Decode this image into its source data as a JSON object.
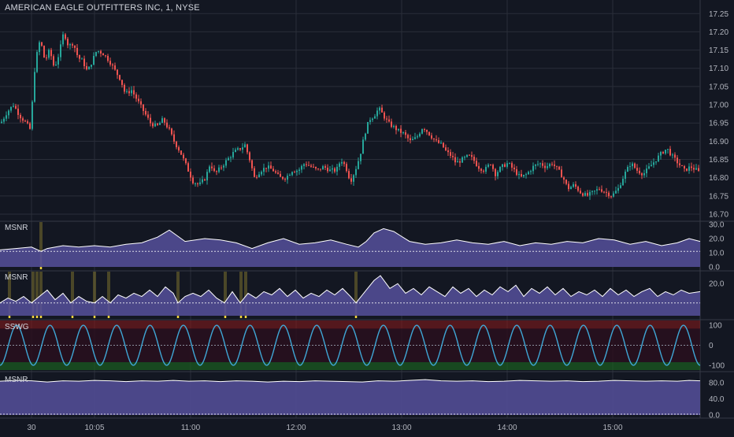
{
  "colors": {
    "background": "#131722",
    "grid": "#2a2e39",
    "up": "#26a69a",
    "down": "#ef5350",
    "osc_fill": "#4e4a8f",
    "osc_line": "#ffffff",
    "highlight": "#f5d63d",
    "wave": "#3fa7d6",
    "sswg_upper": "#8b1a1a",
    "sswg_lower": "#1b5e20"
  },
  "header": {
    "title": "AMERICAN EAGLE OUTFITTERS INC, 1, NYSE"
  },
  "x_axis": {
    "ticks": [
      "30",
      "10:05",
      "11:00",
      "12:00",
      "13:00",
      "14:00",
      "15:00"
    ]
  },
  "chart_data": [
    {
      "type": "candlestick",
      "name": "price",
      "y_ticks": [
        "17.25",
        "17.20",
        "17.15",
        "17.10",
        "17.05",
        "17.00",
        "16.95",
        "16.90",
        "16.85",
        "16.80",
        "16.75",
        "16.70"
      ],
      "ylim": [
        16.7,
        17.27
      ],
      "close_path": [
        [
          0,
          16.95
        ],
        [
          8,
          16.98
        ],
        [
          16,
          17.0
        ],
        [
          24,
          16.97
        ],
        [
          32,
          16.95
        ],
        [
          38,
          16.93
        ],
        [
          42,
          17.08
        ],
        [
          46,
          17.14
        ],
        [
          50,
          17.18
        ],
        [
          56,
          17.12
        ],
        [
          62,
          17.15
        ],
        [
          68,
          17.1
        ],
        [
          74,
          17.14
        ],
        [
          80,
          17.2
        ],
        [
          86,
          17.16
        ],
        [
          92,
          17.17
        ],
        [
          98,
          17.13
        ],
        [
          104,
          17.12
        ],
        [
          110,
          17.09
        ],
        [
          116,
          17.12
        ],
        [
          122,
          17.15
        ],
        [
          130,
          17.14
        ],
        [
          138,
          17.12
        ],
        [
          146,
          17.09
        ],
        [
          152,
          17.07
        ],
        [
          158,
          17.03
        ],
        [
          166,
          17.04
        ],
        [
          174,
          17.01
        ],
        [
          182,
          16.98
        ],
        [
          190,
          16.95
        ],
        [
          198,
          16.94
        ],
        [
          206,
          16.96
        ],
        [
          214,
          16.93
        ],
        [
          220,
          16.9
        ],
        [
          228,
          16.87
        ],
        [
          236,
          16.83
        ],
        [
          244,
          16.79
        ],
        [
          252,
          16.78
        ],
        [
          260,
          16.8
        ],
        [
          266,
          16.84
        ],
        [
          272,
          16.81
        ],
        [
          280,
          16.83
        ],
        [
          288,
          16.85
        ],
        [
          296,
          16.87
        ],
        [
          304,
          16.88
        ],
        [
          310,
          16.89
        ],
        [
          316,
          16.85
        ],
        [
          322,
          16.8
        ],
        [
          330,
          16.82
        ],
        [
          338,
          16.83
        ],
        [
          346,
          16.82
        ],
        [
          354,
          16.8
        ],
        [
          362,
          16.8
        ],
        [
          370,
          16.82
        ],
        [
          378,
          16.82
        ],
        [
          386,
          16.84
        ],
        [
          394,
          16.83
        ],
        [
          402,
          16.82
        ],
        [
          410,
          16.83
        ],
        [
          418,
          16.82
        ],
        [
          426,
          16.82
        ],
        [
          432,
          16.85
        ],
        [
          438,
          16.83
        ],
        [
          444,
          16.79
        ],
        [
          450,
          16.82
        ],
        [
          456,
          16.86
        ],
        [
          462,
          16.92
        ],
        [
          468,
          16.96
        ],
        [
          474,
          16.97
        ],
        [
          480,
          16.99
        ],
        [
          486,
          16.97
        ],
        [
          492,
          16.95
        ],
        [
          498,
          16.94
        ],
        [
          504,
          16.93
        ],
        [
          512,
          16.92
        ],
        [
          520,
          16.9
        ],
        [
          528,
          16.91
        ],
        [
          536,
          16.94
        ],
        [
          544,
          16.92
        ],
        [
          552,
          16.9
        ],
        [
          560,
          16.89
        ],
        [
          566,
          16.87
        ],
        [
          572,
          16.86
        ],
        [
          578,
          16.84
        ],
        [
          586,
          16.85
        ],
        [
          594,
          16.86
        ],
        [
          600,
          16.85
        ],
        [
          606,
          16.83
        ],
        [
          614,
          16.82
        ],
        [
          622,
          16.84
        ],
        [
          628,
          16.81
        ],
        [
          636,
          16.83
        ],
        [
          644,
          16.84
        ],
        [
          652,
          16.82
        ],
        [
          660,
          16.8
        ],
        [
          668,
          16.81
        ],
        [
          676,
          16.83
        ],
        [
          684,
          16.84
        ],
        [
          692,
          16.83
        ],
        [
          700,
          16.84
        ],
        [
          708,
          16.82
        ],
        [
          714,
          16.8
        ],
        [
          720,
          16.77
        ],
        [
          728,
          16.78
        ],
        [
          736,
          16.76
        ],
        [
          744,
          16.75
        ],
        [
          752,
          16.76
        ],
        [
          760,
          16.77
        ],
        [
          768,
          16.76
        ],
        [
          776,
          16.75
        ],
        [
          784,
          16.77
        ],
        [
          792,
          16.81
        ],
        [
          800,
          16.84
        ],
        [
          808,
          16.82
        ],
        [
          816,
          16.81
        ],
        [
          824,
          16.83
        ],
        [
          832,
          16.85
        ],
        [
          840,
          16.87
        ],
        [
          846,
          16.88
        ],
        [
          852,
          16.86
        ],
        [
          860,
          16.84
        ],
        [
          868,
          16.82
        ],
        [
          876,
          16.83
        ],
        [
          884,
          16.82
        ],
        [
          889,
          16.81
        ]
      ]
    },
    {
      "type": "area",
      "name": "MSNR",
      "y_ticks": [
        "30.0",
        "20.0",
        "10.0",
        "0.0"
      ],
      "ylim": [
        0,
        30
      ],
      "baseline": 11,
      "points": [
        [
          0,
          12
        ],
        [
          20,
          13
        ],
        [
          40,
          14
        ],
        [
          52,
          11
        ],
        [
          60,
          13
        ],
        [
          80,
          15
        ],
        [
          100,
          14
        ],
        [
          120,
          15
        ],
        [
          140,
          14
        ],
        [
          160,
          16
        ],
        [
          180,
          17
        ],
        [
          200,
          21
        ],
        [
          215,
          26
        ],
        [
          235,
          18
        ],
        [
          260,
          20
        ],
        [
          280,
          19
        ],
        [
          300,
          17
        ],
        [
          320,
          13
        ],
        [
          340,
          17
        ],
        [
          360,
          20
        ],
        [
          380,
          16
        ],
        [
          400,
          17
        ],
        [
          420,
          19
        ],
        [
          440,
          16
        ],
        [
          455,
          14
        ],
        [
          465,
          18
        ],
        [
          475,
          24
        ],
        [
          487,
          27
        ],
        [
          500,
          25
        ],
        [
          520,
          18
        ],
        [
          540,
          16
        ],
        [
          560,
          17
        ],
        [
          580,
          19
        ],
        [
          600,
          17
        ],
        [
          620,
          16
        ],
        [
          640,
          18
        ],
        [
          660,
          15
        ],
        [
          680,
          17
        ],
        [
          700,
          16
        ],
        [
          720,
          18
        ],
        [
          740,
          17
        ],
        [
          760,
          20
        ],
        [
          780,
          19
        ],
        [
          800,
          16
        ],
        [
          820,
          18
        ],
        [
          840,
          15
        ],
        [
          860,
          17
        ],
        [
          875,
          20
        ],
        [
          889,
          18
        ]
      ],
      "highlight_x": [
        52
      ]
    },
    {
      "type": "area",
      "name": "MSNR",
      "y_ticks": [
        "20.0"
      ],
      "ylim": [
        0,
        26
      ],
      "baseline": 8,
      "points": [
        [
          0,
          8
        ],
        [
          10,
          11
        ],
        [
          20,
          9
        ],
        [
          30,
          12
        ],
        [
          40,
          8
        ],
        [
          50,
          12
        ],
        [
          60,
          16
        ],
        [
          70,
          10
        ],
        [
          80,
          14
        ],
        [
          90,
          8
        ],
        [
          100,
          12
        ],
        [
          110,
          9
        ],
        [
          120,
          8
        ],
        [
          130,
          12
        ],
        [
          140,
          8
        ],
        [
          150,
          13
        ],
        [
          160,
          11
        ],
        [
          170,
          14
        ],
        [
          180,
          12
        ],
        [
          190,
          16
        ],
        [
          200,
          12
        ],
        [
          210,
          18
        ],
        [
          220,
          14
        ],
        [
          226,
          8
        ],
        [
          235,
          12
        ],
        [
          245,
          14
        ],
        [
          255,
          12
        ],
        [
          265,
          16
        ],
        [
          275,
          11
        ],
        [
          285,
          8
        ],
        [
          295,
          15
        ],
        [
          305,
          8
        ],
        [
          315,
          14
        ],
        [
          325,
          11
        ],
        [
          335,
          15
        ],
        [
          345,
          13
        ],
        [
          355,
          17
        ],
        [
          365,
          12
        ],
        [
          375,
          16
        ],
        [
          385,
          11
        ],
        [
          395,
          14
        ],
        [
          405,
          12
        ],
        [
          415,
          16
        ],
        [
          425,
          13
        ],
        [
          435,
          17
        ],
        [
          445,
          12
        ],
        [
          452,
          8
        ],
        [
          465,
          16
        ],
        [
          475,
          22
        ],
        [
          483,
          25
        ],
        [
          495,
          17
        ],
        [
          505,
          20
        ],
        [
          515,
          14
        ],
        [
          525,
          17
        ],
        [
          535,
          13
        ],
        [
          545,
          18
        ],
        [
          555,
          15
        ],
        [
          565,
          12
        ],
        [
          575,
          18
        ],
        [
          585,
          14
        ],
        [
          595,
          17
        ],
        [
          605,
          12
        ],
        [
          615,
          16
        ],
        [
          625,
          13
        ],
        [
          635,
          18
        ],
        [
          645,
          15
        ],
        [
          655,
          19
        ],
        [
          665,
          12
        ],
        [
          675,
          17
        ],
        [
          685,
          14
        ],
        [
          695,
          18
        ],
        [
          705,
          13
        ],
        [
          715,
          17
        ],
        [
          725,
          12
        ],
        [
          735,
          15
        ],
        [
          745,
          13
        ],
        [
          755,
          16
        ],
        [
          765,
          12
        ],
        [
          775,
          17
        ],
        [
          785,
          13
        ],
        [
          795,
          16
        ],
        [
          805,
          12
        ],
        [
          815,
          15
        ],
        [
          825,
          17
        ],
        [
          835,
          12
        ],
        [
          845,
          15
        ],
        [
          855,
          13
        ],
        [
          865,
          16
        ],
        [
          875,
          14
        ],
        [
          889,
          15
        ]
      ],
      "highlight_x": [
        12,
        42,
        47,
        52,
        92,
        120,
        138,
        226,
        286,
        306,
        312,
        452
      ]
    },
    {
      "type": "line",
      "name": "SSWG",
      "y_ticks": [
        "100",
        "0",
        "-100"
      ],
      "ylim": [
        -120,
        120
      ],
      "cycles": 21,
      "amplitude": 100
    },
    {
      "type": "area",
      "name": "MSNR",
      "y_ticks": [
        "80.0",
        "40.0",
        "0.0"
      ],
      "ylim": [
        0,
        100
      ],
      "baseline": 2,
      "points": [
        [
          0,
          84
        ],
        [
          20,
          86
        ],
        [
          40,
          85
        ],
        [
          60,
          82
        ],
        [
          80,
          85
        ],
        [
          100,
          84
        ],
        [
          120,
          86
        ],
        [
          140,
          85
        ],
        [
          160,
          83
        ],
        [
          180,
          85
        ],
        [
          200,
          84
        ],
        [
          220,
          86
        ],
        [
          240,
          84
        ],
        [
          260,
          85
        ],
        [
          280,
          83
        ],
        [
          300,
          85
        ],
        [
          320,
          84
        ],
        [
          340,
          82
        ],
        [
          360,
          84
        ],
        [
          380,
          83
        ],
        [
          400,
          85
        ],
        [
          420,
          84
        ],
        [
          440,
          83
        ],
        [
          460,
          82
        ],
        [
          480,
          85
        ],
        [
          500,
          84
        ],
        [
          520,
          86
        ],
        [
          540,
          88
        ],
        [
          560,
          85
        ],
        [
          580,
          84
        ],
        [
          600,
          85
        ],
        [
          620,
          83
        ],
        [
          640,
          84
        ],
        [
          660,
          86
        ],
        [
          680,
          85
        ],
        [
          700,
          84
        ],
        [
          720,
          85
        ],
        [
          740,
          83
        ],
        [
          760,
          84
        ],
        [
          780,
          86
        ],
        [
          800,
          85
        ],
        [
          820,
          84
        ],
        [
          840,
          85
        ],
        [
          860,
          84
        ],
        [
          875,
          86
        ],
        [
          889,
          85
        ]
      ]
    }
  ]
}
